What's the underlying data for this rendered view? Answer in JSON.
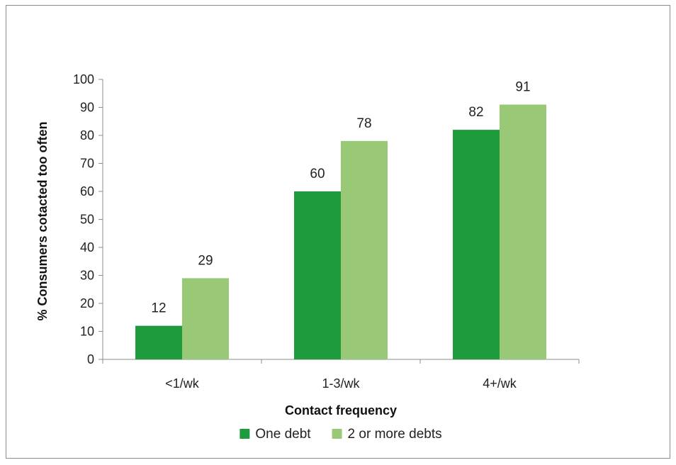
{
  "chart_data": {
    "type": "bar",
    "title": "",
    "xlabel": "Contact frequency",
    "ylabel": "% Consumers cotacted too often",
    "categories": [
      "<1/wk",
      "1-3/wk",
      "4+/wk"
    ],
    "series": [
      {
        "name": "One debt",
        "values": [
          12,
          60,
          82
        ],
        "color": "#1e9b3c"
      },
      {
        "name": "2 or more debts",
        "values": [
          29,
          78,
          91
        ],
        "color": "#99c977"
      }
    ],
    "ylim": [
      0,
      100
    ],
    "yticks": [
      0,
      10,
      20,
      30,
      40,
      50,
      60,
      70,
      80,
      90,
      100
    ],
    "grid": false,
    "data_labels": true,
    "legend_position": "bottom"
  }
}
